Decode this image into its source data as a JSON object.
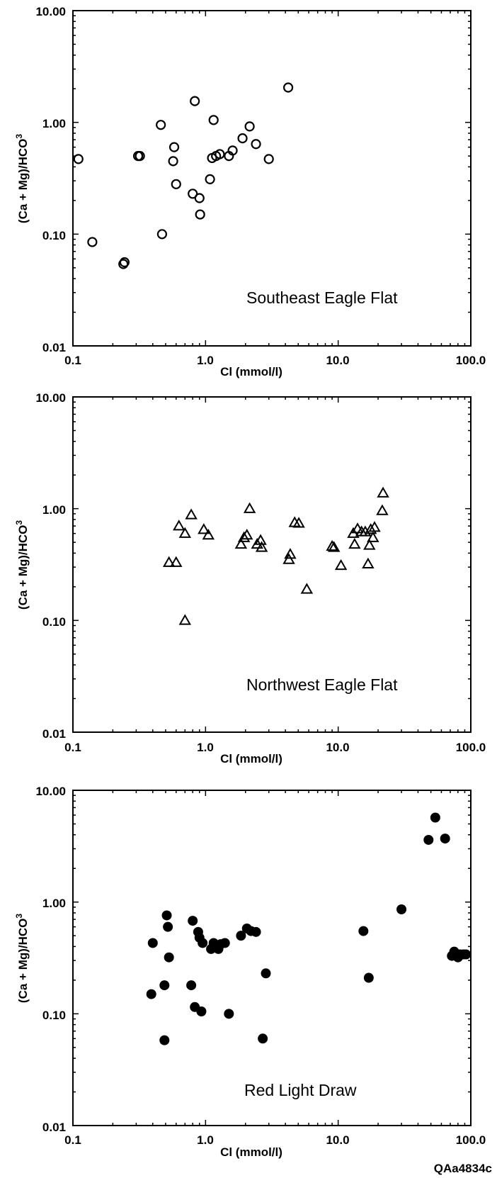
{
  "figure_code": "QAa4834c",
  "chart_data": [
    {
      "type": "scatter",
      "title": "Southeast Eagle Flat",
      "xlabel": "Cl (mmol/l)",
      "ylabel": "(Ca + Mg)/HCO3",
      "xscale": "log",
      "yscale": "log",
      "xlim": [
        0.1,
        100.0
      ],
      "ylim": [
        0.01,
        10.0
      ],
      "x_ticks": [
        "0.1",
        "1.0",
        "10.0",
        "100.0"
      ],
      "y_ticks": [
        "0.01",
        "0.10",
        "1.00",
        "10.00"
      ],
      "marker": "open-circle",
      "points": [
        [
          0.11,
          0.47
        ],
        [
          0.14,
          0.085
        ],
        [
          0.24,
          0.054
        ],
        [
          0.245,
          0.056
        ],
        [
          0.31,
          0.5
        ],
        [
          0.32,
          0.5
        ],
        [
          0.46,
          0.95
        ],
        [
          0.47,
          0.1
        ],
        [
          0.57,
          0.45
        ],
        [
          0.58,
          0.6
        ],
        [
          0.6,
          0.28
        ],
        [
          0.8,
          0.23
        ],
        [
          0.83,
          1.55
        ],
        [
          0.9,
          0.21
        ],
        [
          0.91,
          0.15
        ],
        [
          1.08,
          0.31
        ],
        [
          1.12,
          0.48
        ],
        [
          1.15,
          1.05
        ],
        [
          1.2,
          0.5
        ],
        [
          1.28,
          0.52
        ],
        [
          1.5,
          0.5
        ],
        [
          1.6,
          0.56
        ],
        [
          1.9,
          0.72
        ],
        [
          2.15,
          0.92
        ],
        [
          2.4,
          0.64
        ],
        [
          3.0,
          0.47
        ],
        [
          4.2,
          2.05
        ]
      ]
    },
    {
      "type": "scatter",
      "title": "Northwest Eagle Flat",
      "xlabel": "Cl (mmol/l)",
      "ylabel": "(Ca + Mg)/HCO3",
      "xscale": "log",
      "yscale": "log",
      "xlim": [
        0.1,
        100.0
      ],
      "ylim": [
        0.01,
        10.0
      ],
      "x_ticks": [
        "0.1",
        "1.0",
        "10.0",
        "100.0"
      ],
      "y_ticks": [
        "0.01",
        "0.10",
        "1.00",
        "10.00"
      ],
      "marker": "open-triangle",
      "points": [
        [
          0.53,
          0.33
        ],
        [
          0.6,
          0.33
        ],
        [
          0.63,
          0.7
        ],
        [
          0.7,
          0.1
        ],
        [
          0.7,
          0.6
        ],
        [
          0.78,
          0.88
        ],
        [
          0.97,
          0.65
        ],
        [
          1.05,
          0.58
        ],
        [
          1.85,
          0.48
        ],
        [
          1.95,
          0.55
        ],
        [
          2.05,
          0.58
        ],
        [
          2.15,
          1.0
        ],
        [
          2.45,
          0.48
        ],
        [
          2.6,
          0.52
        ],
        [
          2.65,
          0.45
        ],
        [
          4.25,
          0.35
        ],
        [
          4.35,
          0.39
        ],
        [
          4.7,
          0.75
        ],
        [
          5.05,
          0.74
        ],
        [
          5.8,
          0.19
        ],
        [
          9.0,
          0.46
        ],
        [
          9.3,
          0.45
        ],
        [
          10.5,
          0.31
        ],
        [
          13.0,
          0.6
        ],
        [
          13.3,
          0.48
        ],
        [
          14.0,
          0.66
        ],
        [
          15.0,
          0.62
        ],
        [
          16.0,
          0.62
        ],
        [
          16.8,
          0.32
        ],
        [
          17.2,
          0.47
        ],
        [
          17.6,
          0.65
        ],
        [
          18.3,
          0.55
        ],
        [
          18.8,
          0.68
        ],
        [
          21.5,
          0.96
        ],
        [
          21.8,
          1.38
        ]
      ]
    },
    {
      "type": "scatter",
      "title": "Red Light Draw",
      "xlabel": "Cl (mmol/l)",
      "ylabel": "(Ca + Mg)/HCO3",
      "xscale": "log",
      "yscale": "log",
      "xlim": [
        0.1,
        100.0
      ],
      "ylim": [
        0.01,
        10.0
      ],
      "x_ticks": [
        "0.1",
        "1.0",
        "10.0",
        "100.0"
      ],
      "y_ticks": [
        "0.01",
        "0.10",
        "1.00",
        "10.00"
      ],
      "marker": "filled-circle",
      "points": [
        [
          0.39,
          0.15
        ],
        [
          0.4,
          0.43
        ],
        [
          0.49,
          0.058
        ],
        [
          0.49,
          0.18
        ],
        [
          0.51,
          0.76
        ],
        [
          0.52,
          0.6
        ],
        [
          0.53,
          0.32
        ],
        [
          0.78,
          0.18
        ],
        [
          0.8,
          0.68
        ],
        [
          0.83,
          0.115
        ],
        [
          0.88,
          0.54
        ],
        [
          0.9,
          0.48
        ],
        [
          0.93,
          0.105
        ],
        [
          0.95,
          0.43
        ],
        [
          1.1,
          0.38
        ],
        [
          1.15,
          0.43
        ],
        [
          1.25,
          0.38
        ],
        [
          1.3,
          0.42
        ],
        [
          1.4,
          0.43
        ],
        [
          1.5,
          0.1
        ],
        [
          1.85,
          0.5
        ],
        [
          2.05,
          0.58
        ],
        [
          2.2,
          0.55
        ],
        [
          2.4,
          0.54
        ],
        [
          2.7,
          0.06
        ],
        [
          2.85,
          0.23
        ],
        [
          15.5,
          0.55
        ],
        [
          17.0,
          0.21
        ],
        [
          30.0,
          0.86
        ],
        [
          48.0,
          3.6
        ],
        [
          54.0,
          5.7
        ],
        [
          64.0,
          3.7
        ],
        [
          72.0,
          0.33
        ],
        [
          75.0,
          0.36
        ],
        [
          80.0,
          0.32
        ],
        [
          83.0,
          0.34
        ],
        [
          88.0,
          0.34
        ],
        [
          92.0,
          0.34
        ]
      ]
    }
  ]
}
